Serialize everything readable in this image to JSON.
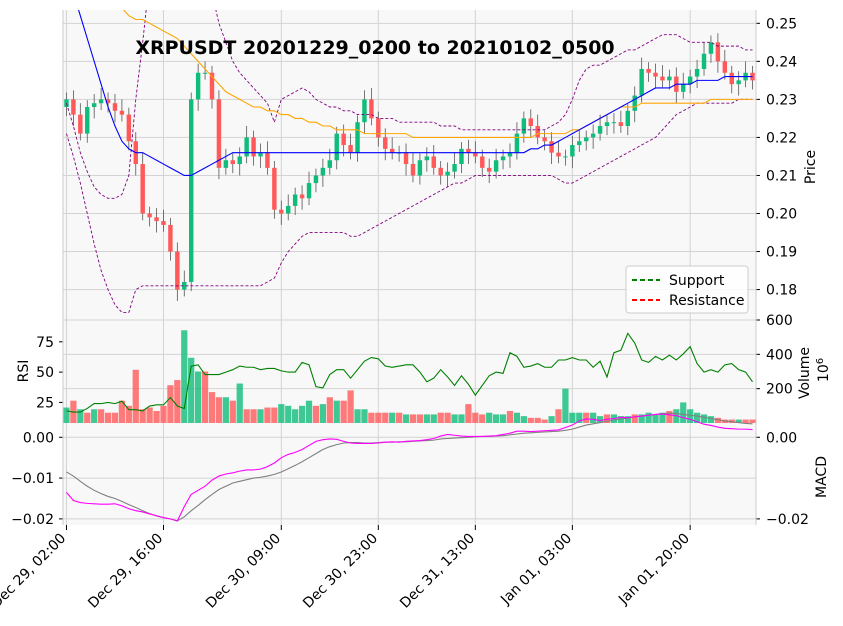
{
  "chart_data": {
    "type": "candlestick",
    "title": "XRPUSDT 20201229_0200 to 20210102_0500",
    "x_tick_labels": [
      "Dec 29, 02:00",
      "Dec 29, 16:00",
      "Dec 30, 09:00",
      "Dec 30, 23:00",
      "Dec 31, 13:00",
      "Jan 01, 03:00",
      "Jan 01, 20:00"
    ],
    "x_tick_index": [
      0,
      14,
      31,
      45,
      59,
      73,
      90
    ],
    "n_candles": 100,
    "price_panel": {
      "ylabel": "Price",
      "ylim": [
        0.172,
        0.2535
      ],
      "ytick_values": [
        0.18,
        0.19,
        0.2,
        0.21,
        0.22,
        0.23,
        0.24,
        0.25
      ],
      "ytick_labels": [
        "0.18",
        "0.19",
        "0.20",
        "0.21",
        "0.22",
        "0.23",
        "0.24",
        "0.25"
      ],
      "close": [
        0.23,
        0.226,
        0.221,
        0.228,
        0.229,
        0.23,
        0.229,
        0.227,
        0.226,
        0.219,
        0.213,
        0.2,
        0.199,
        0.198,
        0.197,
        0.19,
        0.18,
        0.182,
        0.23,
        0.237,
        0.237,
        0.23,
        0.212,
        0.214,
        0.213,
        0.215,
        0.22,
        0.215,
        0.216,
        0.212,
        0.201,
        0.2,
        0.202,
        0.205,
        0.204,
        0.208,
        0.21,
        0.212,
        0.214,
        0.221,
        0.218,
        0.216,
        0.224,
        0.23,
        0.225,
        0.22,
        0.217,
        0.216,
        0.216,
        0.213,
        0.21,
        0.214,
        0.215,
        0.212,
        0.21,
        0.211,
        0.213,
        0.217,
        0.216,
        0.215,
        0.212,
        0.211,
        0.214,
        0.215,
        0.216,
        0.221,
        0.225,
        0.223,
        0.22,
        0.219,
        0.216,
        0.215,
        0.215,
        0.218,
        0.219,
        0.22,
        0.221,
        0.223,
        0.224,
        0.224,
        0.223,
        0.227,
        0.231,
        0.238,
        0.237,
        0.236,
        0.235,
        0.236,
        0.232,
        0.234,
        0.236,
        0.238,
        0.242,
        0.245,
        0.24,
        0.237,
        0.234,
        0.235,
        0.237,
        0.235
      ],
      "bollinger_upper": [
        0.229,
        0.223,
        0.216,
        0.211,
        0.207,
        0.205,
        0.204,
        0.204,
        0.205,
        0.21,
        0.23,
        0.245,
        0.262,
        0.278,
        0.29,
        0.298,
        0.3,
        0.296,
        0.29,
        0.279,
        0.267,
        0.258,
        0.25,
        0.245,
        0.24,
        0.237,
        0.235,
        0.233,
        0.231,
        0.229,
        0.224,
        0.23,
        0.231,
        0.232,
        0.233,
        0.232,
        0.23,
        0.229,
        0.228,
        0.228,
        0.227,
        0.227,
        0.226,
        0.226,
        0.226,
        0.225,
        0.225,
        0.225,
        0.224,
        0.224,
        0.224,
        0.224,
        0.224,
        0.224,
        0.223,
        0.223,
        0.223,
        0.222,
        0.222,
        0.222,
        0.222,
        0.222,
        0.222,
        0.222,
        0.222,
        0.222,
        0.222,
        0.222,
        0.222,
        0.222,
        0.223,
        0.224,
        0.226,
        0.23,
        0.235,
        0.238,
        0.239,
        0.239,
        0.24,
        0.241,
        0.242,
        0.243,
        0.243,
        0.244,
        0.245,
        0.246,
        0.247,
        0.247,
        0.247,
        0.246,
        0.245,
        0.245,
        0.245,
        0.245,
        0.244,
        0.244,
        0.244,
        0.244,
        0.243,
        0.243
      ],
      "bollinger_mid": [
        0.265,
        0.258,
        0.252,
        0.246,
        0.24,
        0.234,
        0.228,
        0.223,
        0.219,
        0.217,
        0.216,
        0.216,
        0.215,
        0.214,
        0.213,
        0.212,
        0.211,
        0.21,
        0.21,
        0.211,
        0.212,
        0.213,
        0.214,
        0.215,
        0.216,
        0.216,
        0.216,
        0.216,
        0.216,
        0.216,
        0.216,
        0.216,
        0.216,
        0.216,
        0.216,
        0.216,
        0.216,
        0.216,
        0.216,
        0.216,
        0.216,
        0.216,
        0.216,
        0.216,
        0.216,
        0.216,
        0.216,
        0.216,
        0.216,
        0.216,
        0.216,
        0.216,
        0.216,
        0.216,
        0.216,
        0.216,
        0.216,
        0.216,
        0.216,
        0.216,
        0.216,
        0.216,
        0.216,
        0.216,
        0.216,
        0.216,
        0.216,
        0.217,
        0.217,
        0.218,
        0.218,
        0.219,
        0.22,
        0.221,
        0.222,
        0.223,
        0.224,
        0.225,
        0.226,
        0.227,
        0.228,
        0.229,
        0.23,
        0.231,
        0.232,
        0.233,
        0.233,
        0.233,
        0.234,
        0.234,
        0.234,
        0.235,
        0.235,
        0.235,
        0.235,
        0.236,
        0.236,
        0.236,
        0.236,
        0.236
      ],
      "sma_orange": [
        0.27,
        0.268,
        0.266,
        0.264,
        0.262,
        0.26,
        0.258,
        0.256,
        0.254,
        0.252,
        0.251,
        0.251,
        0.25,
        0.249,
        0.248,
        0.247,
        0.246,
        0.244,
        0.242,
        0.24,
        0.238,
        0.236,
        0.234,
        0.232,
        0.231,
        0.23,
        0.229,
        0.228,
        0.228,
        0.227,
        0.227,
        0.226,
        0.226,
        0.225,
        0.225,
        0.224,
        0.224,
        0.223,
        0.223,
        0.222,
        0.222,
        0.222,
        0.222,
        0.221,
        0.221,
        0.221,
        0.221,
        0.221,
        0.221,
        0.221,
        0.22,
        0.22,
        0.22,
        0.22,
        0.22,
        0.22,
        0.22,
        0.22,
        0.22,
        0.22,
        0.22,
        0.22,
        0.22,
        0.22,
        0.22,
        0.22,
        0.22,
        0.22,
        0.221,
        0.221,
        0.221,
        0.221,
        0.221,
        0.222,
        0.222,
        0.223,
        0.224,
        0.225,
        0.226,
        0.227,
        0.228,
        0.228,
        0.228,
        0.229,
        0.229,
        0.229,
        0.229,
        0.229,
        0.229,
        0.229,
        0.229,
        0.229,
        0.229,
        0.23,
        0.23,
        0.23,
        0.23,
        0.23,
        0.23,
        0.23
      ],
      "bollinger_lower": [
        0.221,
        0.215,
        0.208,
        0.2,
        0.192,
        0.185,
        0.18,
        0.176,
        0.174,
        0.174,
        0.18,
        0.181,
        0.181,
        0.181,
        0.181,
        0.181,
        0.181,
        0.181,
        0.181,
        0.181,
        0.181,
        0.181,
        0.181,
        0.181,
        0.181,
        0.181,
        0.181,
        0.181,
        0.181,
        0.182,
        0.183,
        0.187,
        0.19,
        0.192,
        0.194,
        0.195,
        0.195,
        0.195,
        0.195,
        0.195,
        0.195,
        0.194,
        0.194,
        0.195,
        0.196,
        0.197,
        0.198,
        0.199,
        0.2,
        0.201,
        0.202,
        0.203,
        0.204,
        0.205,
        0.206,
        0.207,
        0.208,
        0.208,
        0.209,
        0.21,
        0.21,
        0.21,
        0.21,
        0.21,
        0.21,
        0.21,
        0.21,
        0.21,
        0.21,
        0.21,
        0.21,
        0.209,
        0.208,
        0.208,
        0.209,
        0.21,
        0.211,
        0.212,
        0.213,
        0.214,
        0.215,
        0.216,
        0.217,
        0.218,
        0.219,
        0.22,
        0.222,
        0.224,
        0.226,
        0.227,
        0.228,
        0.229,
        0.229,
        0.229,
        0.229,
        0.229,
        0.229,
        0.23,
        0.23,
        0.23
      ],
      "legend": [
        {
          "label": "Support",
          "color": "#008000",
          "dash": true
        },
        {
          "label": "Resistance",
          "color": "#ff0000",
          "dash": true
        }
      ],
      "legend_position": "lower-right"
    },
    "rsi_panel": {
      "ylabel": "RSI",
      "ylim": [
        8,
        93
      ],
      "ytick_values": [
        25,
        50,
        75
      ],
      "ytick_labels": [
        "25",
        "50",
        "75"
      ],
      "values": [
        18,
        17,
        17,
        20,
        24,
        24,
        25,
        24,
        26,
        19,
        19,
        18,
        22,
        23,
        23,
        29,
        22,
        20,
        55,
        56,
        48,
        48,
        48,
        50,
        52,
        55,
        54,
        54,
        52,
        53,
        53,
        51,
        50,
        50,
        58,
        56,
        38,
        37,
        48,
        52,
        52,
        45,
        52,
        59,
        62,
        61,
        55,
        54,
        55,
        56,
        56,
        50,
        42,
        45,
        52,
        46,
        39,
        47,
        40,
        31,
        39,
        47,
        50,
        49,
        66,
        63,
        54,
        55,
        57,
        54,
        54,
        60,
        60,
        62,
        60,
        60,
        54,
        59,
        46,
        66,
        68,
        82,
        74,
        60,
        58,
        63,
        60,
        64,
        60,
        65,
        71,
        57,
        50,
        52,
        50,
        56,
        57,
        52,
        50,
        42
      ],
      "color": "#008000"
    },
    "volume_panel": {
      "ylabel": "Volume",
      "ylabel_multiplier": "10^6",
      "ylim": [
        0,
        600
      ],
      "ytick_values": [
        200,
        400,
        600
      ],
      "ytick_labels": [
        "200",
        "400",
        "600"
      ],
      "values": [
        90,
        130,
        80,
        60,
        80,
        80,
        60,
        60,
        130,
        100,
        310,
        80,
        90,
        70,
        100,
        220,
        250,
        540,
        380,
        300,
        300,
        180,
        150,
        150,
        130,
        230,
        80,
        80,
        80,
        90,
        90,
        110,
        100,
        80,
        100,
        130,
        100,
        110,
        150,
        130,
        130,
        190,
        80,
        80,
        60,
        60,
        60,
        60,
        60,
        50,
        50,
        50,
        50,
        50,
        60,
        60,
        50,
        50,
        110,
        60,
        50,
        60,
        50,
        50,
        70,
        60,
        40,
        30,
        30,
        20,
        40,
        80,
        200,
        60,
        60,
        60,
        60,
        40,
        50,
        50,
        40,
        40,
        50,
        50,
        60,
        50,
        60,
        70,
        80,
        120,
        80,
        60,
        50,
        40,
        30,
        20,
        20,
        20,
        20,
        20
      ],
      "up": [
        1,
        0,
        1,
        0,
        1,
        0,
        0,
        0,
        0,
        0,
        0,
        0,
        0,
        0,
        0,
        0,
        0,
        1,
        1,
        1,
        0,
        0,
        0,
        1,
        0,
        1,
        0,
        0,
        1,
        0,
        0,
        1,
        1,
        1,
        1,
        1,
        0,
        1,
        0,
        1,
        0,
        0,
        1,
        1,
        0,
        0,
        0,
        1,
        0,
        1,
        0,
        0,
        1,
        1,
        0,
        0,
        1,
        1,
        0,
        0,
        0,
        1,
        1,
        1,
        0,
        1,
        1,
        0,
        0,
        0,
        1,
        0,
        1,
        1,
        1,
        0,
        1,
        1,
        0,
        1,
        1,
        1,
        0,
        1,
        1,
        1,
        1,
        0,
        1,
        1,
        1,
        1,
        1,
        1,
        0,
        0,
        0,
        1,
        0,
        0
      ]
    },
    "macd_panel": {
      "ylabel": "MACD",
      "ylim": [
        -0.0215,
        0.0035
      ],
      "ytick_values": [
        -0.02,
        -0.01,
        0.0
      ],
      "ytick_labels": [
        "−0.02",
        "−0.01",
        "0.00"
      ],
      "ytick_labels_right": [
        "−0.02",
        "0.00"
      ],
      "macd": [
        -0.0135,
        -0.0155,
        -0.016,
        -0.0162,
        -0.0163,
        -0.0164,
        -0.0164,
        -0.0163,
        -0.0168,
        -0.0175,
        -0.018,
        -0.0183,
        -0.0188,
        -0.0192,
        -0.0197,
        -0.02,
        -0.0205,
        -0.017,
        -0.014,
        -0.013,
        -0.012,
        -0.0105,
        -0.0095,
        -0.009,
        -0.0087,
        -0.0083,
        -0.008,
        -0.008,
        -0.0078,
        -0.0072,
        -0.0063,
        -0.005,
        -0.0042,
        -0.0037,
        -0.003,
        -0.002,
        -0.001,
        -0.0006,
        -0.0004,
        -0.0005,
        -0.001,
        -0.0014,
        -0.0015,
        -0.0015,
        -0.0015,
        -0.0014,
        -0.0012,
        -0.0011,
        -0.0012,
        -0.001,
        -0.0009,
        -0.0008,
        -0.0006,
        -0.0003,
        0.0003,
        0.0007,
        0.0005,
        0.0003,
        0.0002,
        0.0002,
        0.0002,
        0.0003,
        0.0004,
        0.0007,
        0.001,
        0.0015,
        0.0015,
        0.0014,
        0.0015,
        0.0016,
        0.0017,
        0.0018,
        0.0024,
        0.003,
        0.004,
        0.0045,
        0.0044,
        0.0041,
        0.0044,
        0.0046,
        0.0049,
        0.0048,
        0.005,
        0.0052,
        0.0054,
        0.0056,
        0.0057,
        0.0055,
        0.0053,
        0.0048,
        0.0044,
        0.0038,
        0.0032,
        0.0029,
        0.0025,
        0.0022,
        0.0021,
        0.002,
        0.002,
        0.0019
      ],
      "signal": [
        -0.0085,
        -0.0095,
        -0.0108,
        -0.012,
        -0.013,
        -0.0138,
        -0.0145,
        -0.015,
        -0.0157,
        -0.0165,
        -0.0172,
        -0.018,
        -0.0187,
        -0.0193,
        -0.0197,
        -0.02,
        -0.0205,
        -0.0195,
        -0.018,
        -0.0167,
        -0.0153,
        -0.014,
        -0.0128,
        -0.012,
        -0.0112,
        -0.0108,
        -0.0104,
        -0.01,
        -0.0098,
        -0.0095,
        -0.0091,
        -0.0085,
        -0.0077,
        -0.0069,
        -0.006,
        -0.005,
        -0.004,
        -0.003,
        -0.0023,
        -0.0018,
        -0.0014,
        -0.0013,
        -0.0013,
        -0.0014,
        -0.0014,
        -0.0013,
        -0.0012,
        -0.0012,
        -0.0011,
        -0.0011,
        -0.001,
        -0.0009,
        -0.0008,
        -0.0007,
        -0.0004,
        -0.0003,
        -0.0002,
        -0.0001,
        0.0,
        0.0001,
        0.0002,
        0.0002,
        0.0003,
        0.0004,
        0.0006,
        0.0008,
        0.001,
        0.0011,
        0.0012,
        0.0013,
        0.0014,
        0.0015,
        0.0017,
        0.002,
        0.0025,
        0.003,
        0.0033,
        0.0036,
        0.0039,
        0.0042,
        0.0045,
        0.0047,
        0.005,
        0.0052,
        0.0054,
        0.0056,
        0.0058,
        0.0059,
        0.0058,
        0.0056,
        0.0054,
        0.0052,
        0.0049,
        0.0046,
        0.0043,
        0.004,
        0.0038,
        0.0036,
        0.0034,
        0.0033
      ],
      "macd_color": "#ff00ff",
      "signal_color": "#808080"
    },
    "colors": {
      "up": "#0fbd7a",
      "down": "#ff5959",
      "bollinger": "#800080",
      "mid": "#0000ff",
      "sma": "#ffa500",
      "grid": "#d3d3d3",
      "panel_bg": "#f8f8f8"
    },
    "grid": true
  }
}
